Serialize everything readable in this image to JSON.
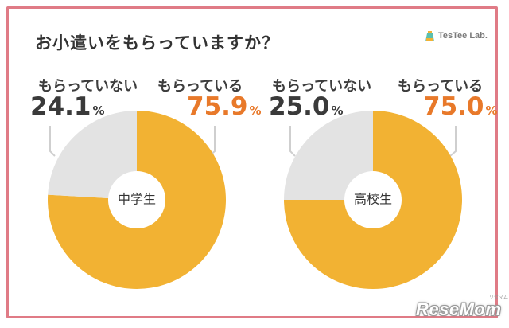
{
  "title": "お小遣いをもらっていますか？",
  "brand": {
    "name": "TesTee Lab."
  },
  "watermark": {
    "text": "ReseMom",
    "sub": "リセマム"
  },
  "labels": {
    "no": "もらっていない",
    "yes": "もらっている"
  },
  "colors": {
    "yes": "#f2b233",
    "no": "#e3e3e3",
    "frame": "#e07b86",
    "yes_text": "#e8792a",
    "no_text": "#3a3a3a",
    "leader": "#cfcfcf"
  },
  "chart_data": [
    {
      "type": "pie",
      "center_label": "中学生",
      "categories": [
        "もらっている",
        "もらっていない"
      ],
      "values": [
        75.9,
        24.1
      ],
      "value_labels": {
        "yes": "75.9",
        "no": "24.1",
        "unit": "%"
      }
    },
    {
      "type": "pie",
      "center_label": "高校生",
      "categories": [
        "もらっている",
        "もらっていない"
      ],
      "values": [
        75.0,
        25.0
      ],
      "value_labels": {
        "yes": "75.0",
        "no": "25.0",
        "unit": "%"
      }
    }
  ]
}
